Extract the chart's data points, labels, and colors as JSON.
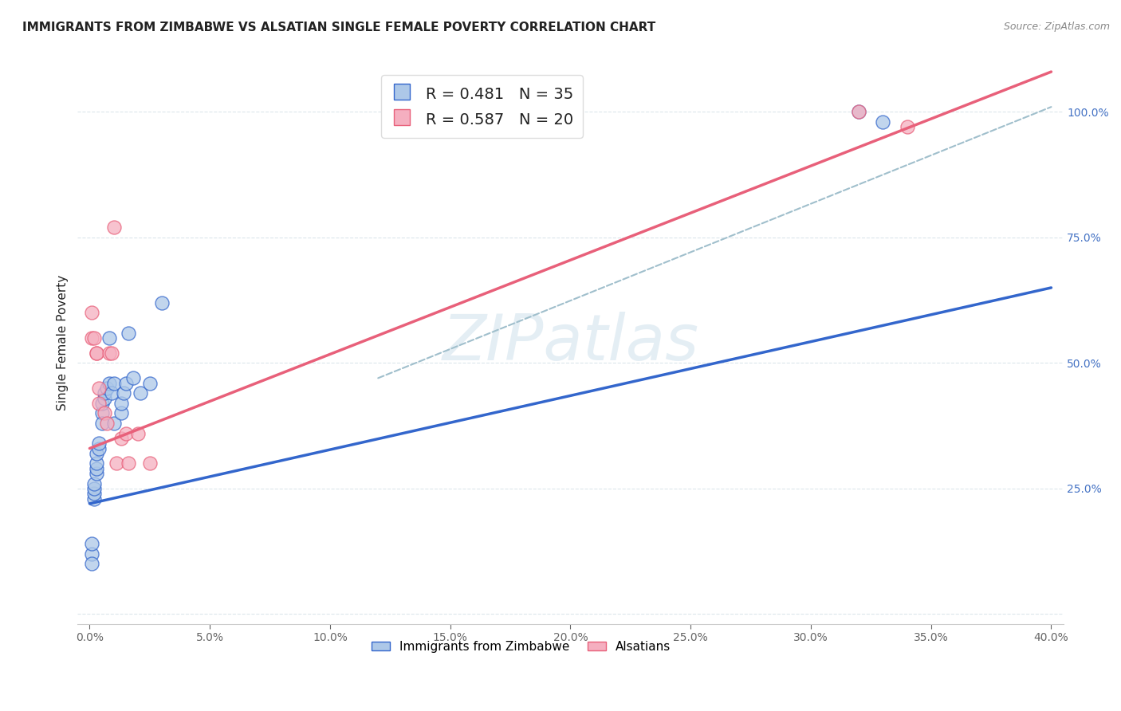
{
  "title": "IMMIGRANTS FROM ZIMBABWE VS ALSATIAN SINGLE FEMALE POVERTY CORRELATION CHART",
  "source": "Source: ZipAtlas.com",
  "ylabel": "Single Female Poverty",
  "legend_blue_R": "R = 0.481",
  "legend_blue_N": "N = 35",
  "legend_pink_R": "R = 0.587",
  "legend_pink_N": "N = 20",
  "legend_label_blue": "Immigrants from Zimbabwe",
  "legend_label_pink": "Alsatians",
  "watermark": "ZIPatlas",
  "blue_scatter_color": "#adc8e8",
  "pink_scatter_color": "#f5afc0",
  "blue_line_color": "#3366cc",
  "pink_line_color": "#e8607a",
  "dashed_line_color": "#a0bfcc",
  "blue_scatter_x": [
    0.001,
    0.001,
    0.001,
    0.002,
    0.002,
    0.002,
    0.002,
    0.003,
    0.003,
    0.003,
    0.003,
    0.004,
    0.004,
    0.005,
    0.005,
    0.005,
    0.006,
    0.006,
    0.007,
    0.008,
    0.008,
    0.009,
    0.01,
    0.01,
    0.013,
    0.013,
    0.014,
    0.015,
    0.016,
    0.018,
    0.021,
    0.025,
    0.03,
    0.32,
    0.33
  ],
  "blue_scatter_y": [
    0.12,
    0.14,
    0.1,
    0.23,
    0.24,
    0.25,
    0.26,
    0.28,
    0.29,
    0.3,
    0.32,
    0.33,
    0.34,
    0.4,
    0.38,
    0.42,
    0.43,
    0.44,
    0.45,
    0.46,
    0.55,
    0.44,
    0.38,
    0.46,
    0.4,
    0.42,
    0.44,
    0.46,
    0.56,
    0.47,
    0.44,
    0.46,
    0.62,
    1.0,
    0.98
  ],
  "pink_scatter_x": [
    0.001,
    0.001,
    0.002,
    0.003,
    0.003,
    0.004,
    0.004,
    0.006,
    0.007,
    0.008,
    0.009,
    0.01,
    0.011,
    0.013,
    0.015,
    0.016,
    0.02,
    0.025,
    0.32,
    0.34
  ],
  "pink_scatter_y": [
    0.6,
    0.55,
    0.55,
    0.52,
    0.52,
    0.42,
    0.45,
    0.4,
    0.38,
    0.52,
    0.52,
    0.77,
    0.3,
    0.35,
    0.36,
    0.3,
    0.36,
    0.3,
    1.0,
    0.97
  ],
  "blue_line_x0": 0.0,
  "blue_line_y0": 0.22,
  "blue_line_x1": 0.4,
  "blue_line_y1": 0.65,
  "pink_line_x0": 0.0,
  "pink_line_y0": 0.33,
  "pink_line_x1": 0.4,
  "pink_line_y1": 1.08,
  "dashed_line_x0": 0.12,
  "dashed_line_y0": 0.47,
  "dashed_line_x1": 0.4,
  "dashed_line_y1": 1.01,
  "xlim": [
    -0.005,
    0.405
  ],
  "ylim": [
    -0.02,
    1.1
  ],
  "x_ticks": [
    0.0,
    0.05,
    0.1,
    0.15,
    0.2,
    0.25,
    0.3,
    0.35,
    0.4
  ],
  "y_ticks": [
    0.0,
    0.25,
    0.5,
    0.75,
    1.0
  ],
  "y_tick_labels": [
    "",
    "25.0%",
    "50.0%",
    "75.0%",
    "100.0%"
  ],
  "title_color": "#222222",
  "source_color": "#888888",
  "ytick_color": "#4472c4",
  "xtick_color": "#666666",
  "grid_color": "#d8e4ea",
  "watermark_color": "#c5dae8"
}
